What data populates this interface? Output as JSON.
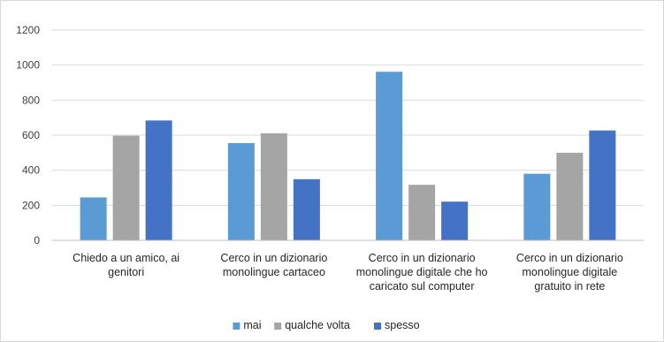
{
  "chart_data": {
    "type": "bar",
    "title": "",
    "xlabel": "",
    "ylabel": "",
    "ylim": [
      0,
      1200
    ],
    "yticks": [
      0,
      200,
      400,
      600,
      800,
      1000,
      1200
    ],
    "grid": true,
    "legend_position": "bottom",
    "categories": [
      [
        "Chiedo a un amico, ai",
        "genitori"
      ],
      [
        "Cerco in un dizionario",
        "monolingue cartaceo"
      ],
      [
        "Cerco in un dizionario",
        "monolingue digitale che ho",
        "caricato sul computer"
      ],
      [
        "Cerco in un dizionario",
        "monolingue digitale",
        "gratuito in rete"
      ]
    ],
    "series": [
      {
        "name": "mai",
        "color": "#5b9bd5",
        "values": [
          245,
          555,
          962,
          380
        ]
      },
      {
        "name": "qualche volta",
        "color": "#a5a5a5",
        "values": [
          597,
          611,
          317,
          500
        ]
      },
      {
        "name": "spesso",
        "color": "#4472c4",
        "values": [
          684,
          349,
          221,
          627
        ]
      }
    ]
  }
}
